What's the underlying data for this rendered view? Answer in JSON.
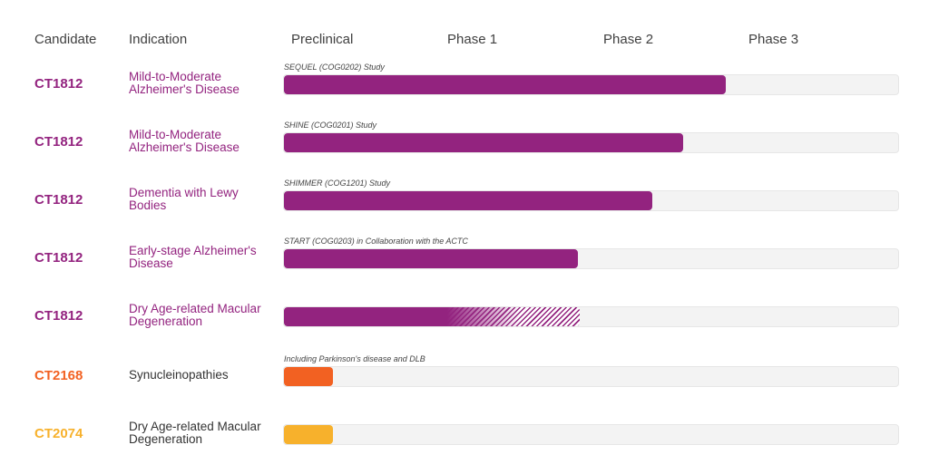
{
  "headers": {
    "candidate": "Candidate",
    "indication": "Indication",
    "preclinical": "Preclinical",
    "phase1": "Phase 1",
    "phase2": "Phase 2",
    "phase3": "Phase 3"
  },
  "colors": {
    "purple": "#93237f",
    "orange": "#f26122",
    "yellow": "#f7b12c",
    "track": "#f3f3f3",
    "indication_dark": "#333333"
  },
  "chart_data": {
    "type": "bar",
    "orientation": "horizontal",
    "x_axis_stages": [
      "Preclinical",
      "Phase 1",
      "Phase 2",
      "Phase 3"
    ],
    "xlim": [
      0,
      4
    ],
    "value_units": "stage progress (0 = start of Preclinical, 4 = end of Phase 3)",
    "rows": [
      {
        "candidate": "CT1812",
        "indication": "Mild-to-Moderate Alzheimer's Disease",
        "study": "SEQUEL (COG0202) Study",
        "progress": 2.87,
        "hatched_to": null,
        "candidate_color": "#93237f",
        "bar_color": "#93237f",
        "indication_color": "#93237f"
      },
      {
        "candidate": "CT1812",
        "indication": "Mild-to-Moderate Alzheimer's Disease",
        "study": "SHINE (COG0201) Study",
        "progress": 2.59,
        "hatched_to": null,
        "candidate_color": "#93237f",
        "bar_color": "#93237f",
        "indication_color": "#93237f"
      },
      {
        "candidate": "CT1812",
        "indication": "Dementia with Lewy Bodies",
        "study": "SHIMMER (COG1201) Study",
        "progress": 2.39,
        "hatched_to": null,
        "candidate_color": "#93237f",
        "bar_color": "#93237f",
        "indication_color": "#93237f"
      },
      {
        "candidate": "CT1812",
        "indication": "Early-stage Alzheimer's Disease",
        "study": "START (COG0203) in Collaboration with the ACTC",
        "progress": 1.91,
        "hatched_to": null,
        "candidate_color": "#93237f",
        "bar_color": "#93237f",
        "indication_color": "#93237f"
      },
      {
        "candidate": "CT1812",
        "indication": "Dry Age-related Macular Degeneration",
        "study": "",
        "progress": 1.06,
        "hatched_to": 1.92,
        "candidate_color": "#93237f",
        "bar_color": "#93237f",
        "indication_color": "#93237f"
      },
      {
        "candidate": "CT2168",
        "indication": "Synucleinopathies",
        "study": "Including Parkinson's disease and DLB",
        "progress": 0.32,
        "hatched_to": null,
        "candidate_color": "#f26122",
        "bar_color": "#f26122",
        "indication_color": "#333333"
      },
      {
        "candidate": "CT2074",
        "indication": "Dry Age-related Macular Degeneration",
        "study": "",
        "progress": 0.32,
        "hatched_to": null,
        "candidate_color": "#f7b12c",
        "bar_color": "#f7b12c",
        "indication_color": "#333333"
      }
    ]
  }
}
